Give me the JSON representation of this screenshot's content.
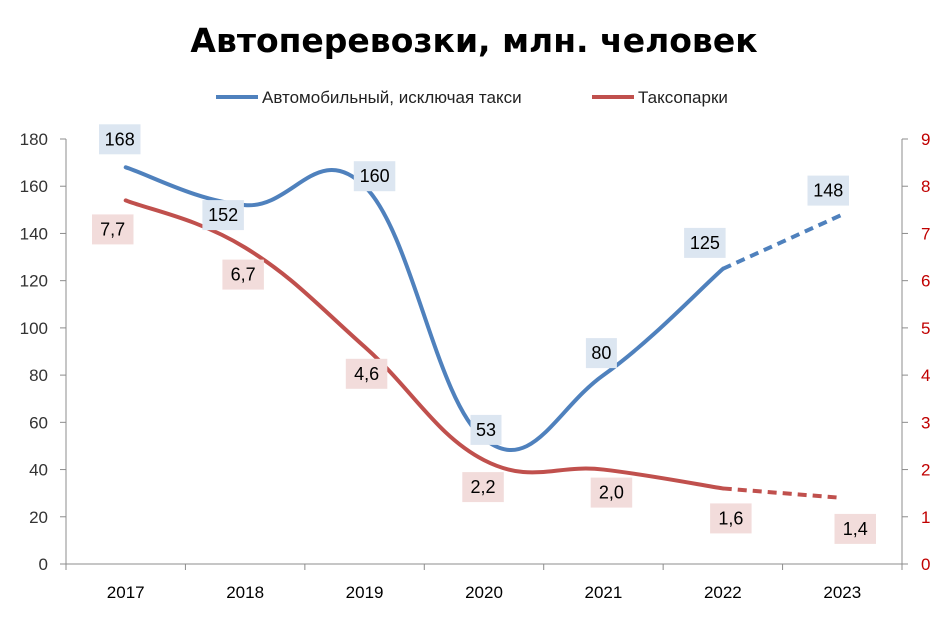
{
  "chart_data": {
    "type": "line",
    "title": "Автоперевозки, млн. человек",
    "categories": [
      "2017",
      "2018",
      "2019",
      "2020",
      "2021",
      "2022",
      "2023"
    ],
    "legend_position": "top",
    "grid": false,
    "y_left": {
      "min": 0,
      "max": 180,
      "step": 20,
      "ticks": [
        "0",
        "20",
        "40",
        "60",
        "80",
        "100",
        "120",
        "140",
        "160",
        "180"
      ]
    },
    "y_right": {
      "min": 0,
      "max": 9,
      "step": 1,
      "ticks": [
        "0",
        "1",
        "2",
        "3",
        "4",
        "5",
        "6",
        "7",
        "8",
        "9"
      ]
    },
    "series": [
      {
        "name": "Автомобильный, исключая такси",
        "axis": "left",
        "color": "#4f81bd",
        "label_bg": "#dce6f1",
        "values": [
          168,
          152,
          160,
          53,
          80,
          125,
          148
        ],
        "labels": [
          "168",
          "152",
          "160",
          "53",
          "80",
          "125",
          "148"
        ],
        "forecast_from_index": 5
      },
      {
        "name": "Таксопарки",
        "axis": "right",
        "color": "#c0504d",
        "label_bg": "#f2dcdb",
        "values": [
          7.7,
          6.7,
          4.6,
          2.2,
          2.0,
          1.6,
          1.4
        ],
        "labels": [
          "7,7",
          "6,7",
          "4,6",
          "2,2",
          "2,0",
          "1,6",
          "1,4"
        ],
        "forecast_from_index": 5
      }
    ]
  }
}
